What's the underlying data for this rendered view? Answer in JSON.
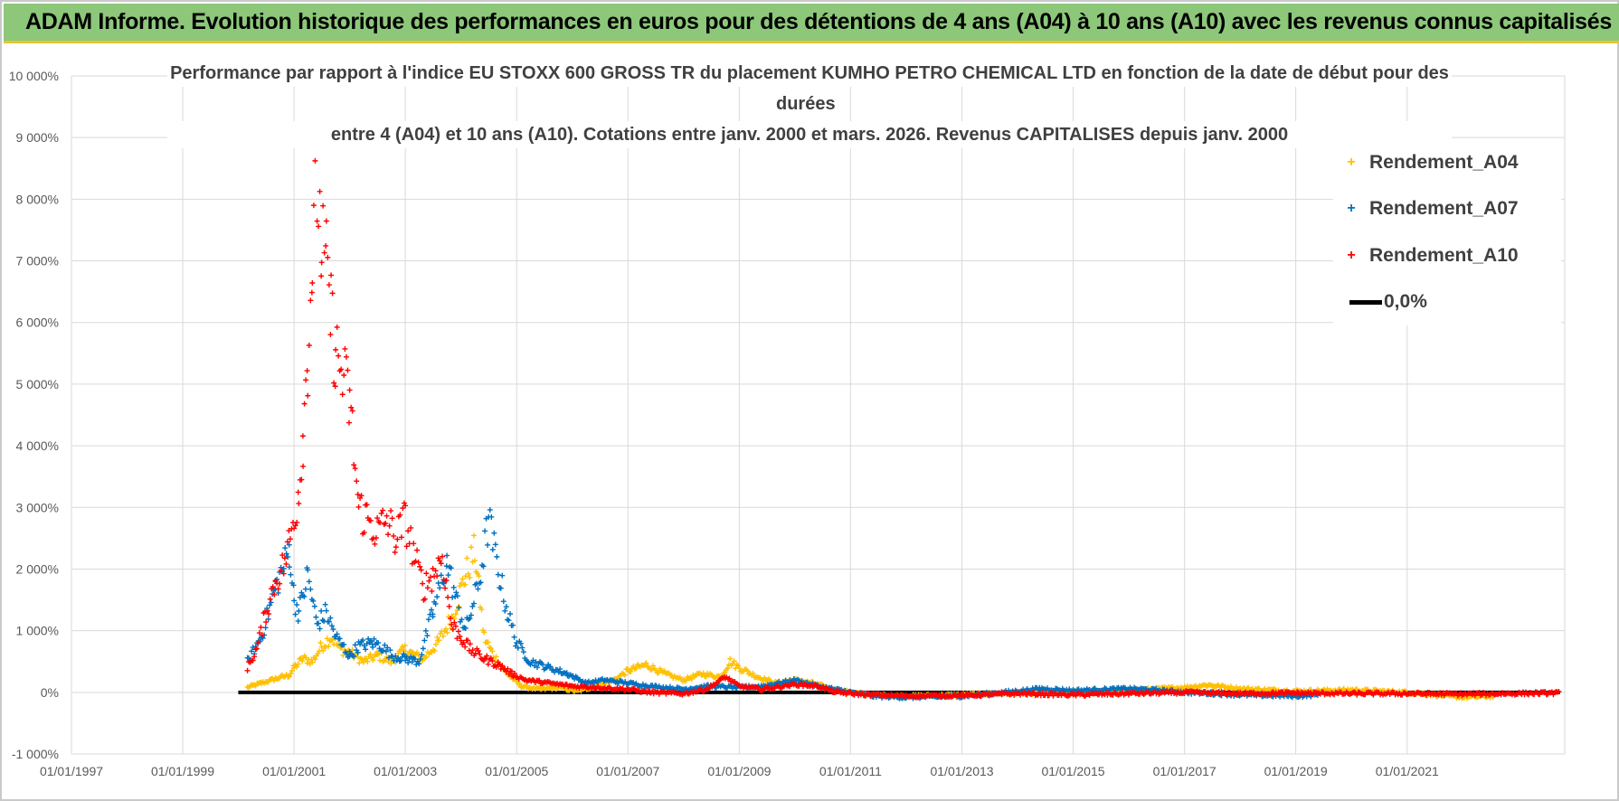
{
  "banner": {
    "title": "ADAM Informe. Evolution historique des performances en euros pour des détentions de 4 ans (A04) à 10 ans (A10) avec les revenus connus capitalisés"
  },
  "colors": {
    "banner_bg": "#8dc77a",
    "banner_border": "#e6c530",
    "A04": "#ffc000",
    "A07": "#0070c0",
    "A10": "#ff0000",
    "zero_line": "#000000",
    "grid": "#d9d9d9"
  },
  "chart_data": {
    "type": "scatter",
    "title_lines": [
      "Performance par rapport à l'indice EU STOXX 600 GROSS TR  du placement KUMHO PETRO CHEMICAL LTD en fonction de la date de début pour des",
      "durées",
      "entre 4 (A04) et 10 ans (A10).  Cotations entre janv. 2000 et mars. 2026.  Revenus CAPITALISES depuis janv. 2000"
    ],
    "xlabel": "",
    "ylabel": "",
    "x_ticks": [
      "01/01/1997",
      "01/01/1999",
      "01/01/2001",
      "01/01/2003",
      "01/01/2005",
      "01/01/2007",
      "01/01/2009",
      "01/01/2011",
      "01/01/2013",
      "01/01/2015",
      "01/01/2017",
      "01/01/2019",
      "01/01/2021"
    ],
    "x_range": [
      "1997-01-01",
      "2023-11-01"
    ],
    "y_ticks": [
      "-1 000%",
      "0%",
      "1 000%",
      "2 000%",
      "3 000%",
      "4 000%",
      "5 000%",
      "6 000%",
      "7 000%",
      "8 000%",
      "9 000%",
      "10 000%"
    ],
    "ylim": [
      -1000,
      10000
    ],
    "grid": true,
    "legend_position": "top-right",
    "series": [
      {
        "name": "Rendement_A04",
        "marker": "+",
        "points": [
          [
            "2000-03",
            80
          ],
          [
            "2000-06",
            150
          ],
          [
            "2000-09",
            220
          ],
          [
            "2000-12",
            280
          ],
          [
            "2001-01",
            400
          ],
          [
            "2001-03",
            550
          ],
          [
            "2001-05",
            500
          ],
          [
            "2001-07",
            750
          ],
          [
            "2001-09",
            900
          ],
          [
            "2001-11",
            700
          ],
          [
            "2002-01",
            650
          ],
          [
            "2002-04",
            500
          ],
          [
            "2002-07",
            600
          ],
          [
            "2002-10",
            500
          ],
          [
            "2003-01",
            700
          ],
          [
            "2003-03",
            600
          ],
          [
            "2003-05",
            550
          ],
          [
            "2003-08",
            800
          ],
          [
            "2003-11",
            1200
          ],
          [
            "2004-02",
            1900
          ],
          [
            "2004-04",
            2300
          ],
          [
            "2004-06",
            900
          ],
          [
            "2004-08",
            600
          ],
          [
            "2004-11",
            300
          ],
          [
            "2005-02",
            100
          ],
          [
            "2005-06",
            50
          ],
          [
            "2005-10",
            80
          ],
          [
            "2006-02",
            20
          ],
          [
            "2006-06",
            100
          ],
          [
            "2006-10",
            200
          ],
          [
            "2007-01",
            350
          ],
          [
            "2007-05",
            450
          ],
          [
            "2007-09",
            300
          ],
          [
            "2008-01",
            200
          ],
          [
            "2008-05",
            300
          ],
          [
            "2008-09",
            250
          ],
          [
            "2008-11",
            500
          ],
          [
            "2009-01",
            400
          ],
          [
            "2009-05",
            250
          ],
          [
            "2009-09",
            150
          ],
          [
            "2010-01",
            200
          ],
          [
            "2010-05",
            150
          ],
          [
            "2010-09",
            50
          ],
          [
            "2011-01",
            0
          ],
          [
            "2011-06",
            -50
          ],
          [
            "2012-01",
            -60
          ],
          [
            "2013-01",
            -40
          ],
          [
            "2014-01",
            -10
          ],
          [
            "2015-01",
            0
          ],
          [
            "2016-01",
            30
          ],
          [
            "2017-01",
            80
          ],
          [
            "2017-06",
            120
          ],
          [
            "2018-01",
            60
          ],
          [
            "2019-01",
            20
          ],
          [
            "2020-01",
            40
          ],
          [
            "2021-01",
            0
          ],
          [
            "2022-01",
            -80
          ],
          [
            "2022-08",
            -60
          ]
        ]
      },
      {
        "name": "Rendement_A07",
        "marker": "+",
        "points": [
          [
            "2000-03",
            500
          ],
          [
            "2000-06",
            900
          ],
          [
            "2000-09",
            1700
          ],
          [
            "2000-12",
            2300
          ],
          [
            "2001-01",
            1500
          ],
          [
            "2001-02",
            1300
          ],
          [
            "2001-04",
            1900
          ],
          [
            "2001-06",
            1100
          ],
          [
            "2001-08",
            1300
          ],
          [
            "2001-10",
            900
          ],
          [
            "2002-01",
            600
          ],
          [
            "2002-03",
            750
          ],
          [
            "2002-06",
            800
          ],
          [
            "2002-08",
            750
          ],
          [
            "2002-10",
            600
          ],
          [
            "2003-01",
            550
          ],
          [
            "2003-04",
            500
          ],
          [
            "2003-07",
            1300
          ],
          [
            "2003-10",
            2100
          ],
          [
            "2003-12",
            1500
          ],
          [
            "2004-02",
            1000
          ],
          [
            "2004-05",
            1800
          ],
          [
            "2004-07",
            2800
          ],
          [
            "2004-09",
            2000
          ],
          [
            "2004-11",
            1300
          ],
          [
            "2005-01",
            800
          ],
          [
            "2005-04",
            500
          ],
          [
            "2005-08",
            400
          ],
          [
            "2005-12",
            300
          ],
          [
            "2006-04",
            150
          ],
          [
            "2006-08",
            200
          ],
          [
            "2007-01",
            150
          ],
          [
            "2007-06",
            100
          ],
          [
            "2008-01",
            50
          ],
          [
            "2008-06",
            100
          ],
          [
            "2009-01",
            80
          ],
          [
            "2009-06",
            100
          ],
          [
            "2010-01",
            200
          ],
          [
            "2010-06",
            100
          ],
          [
            "2011-01",
            0
          ],
          [
            "2011-06",
            -60
          ],
          [
            "2012-01",
            -80
          ],
          [
            "2013-01",
            -60
          ],
          [
            "2014-01",
            20
          ],
          [
            "2014-06",
            60
          ],
          [
            "2015-01",
            30
          ],
          [
            "2016-01",
            60
          ],
          [
            "2016-06",
            40
          ],
          [
            "2017-01",
            0
          ],
          [
            "2018-01",
            -40
          ],
          [
            "2019-01",
            -60
          ],
          [
            "2019-06",
            -40
          ]
        ]
      },
      {
        "name": "Rendement_A10",
        "marker": "+",
        "points": [
          [
            "2000-03",
            400
          ],
          [
            "2000-05",
            700
          ],
          [
            "2000-07",
            1300
          ],
          [
            "2000-09",
            1800
          ],
          [
            "2000-11",
            2100
          ],
          [
            "2001-01",
            2800
          ],
          [
            "2001-02",
            3300
          ],
          [
            "2001-03",
            4200
          ],
          [
            "2001-04",
            5500
          ],
          [
            "2001-05",
            7000
          ],
          [
            "2001-06",
            8300
          ],
          [
            "2001-07",
            7200
          ],
          [
            "2001-08",
            6800
          ],
          [
            "2001-09",
            6100
          ],
          [
            "2001-10",
            5500
          ],
          [
            "2001-12",
            5000
          ],
          [
            "2002-01",
            4700
          ],
          [
            "2002-03",
            3000
          ],
          [
            "2002-05",
            2800
          ],
          [
            "2002-07",
            2600
          ],
          [
            "2002-09",
            2800
          ],
          [
            "2002-11",
            2500
          ],
          [
            "2003-01",
            2800
          ],
          [
            "2003-03",
            2200
          ],
          [
            "2003-05",
            1700
          ],
          [
            "2003-07",
            1900
          ],
          [
            "2003-09",
            2200
          ],
          [
            "2003-11",
            1100
          ],
          [
            "2004-01",
            900
          ],
          [
            "2004-03",
            700
          ],
          [
            "2004-06",
            550
          ],
          [
            "2004-09",
            450
          ],
          [
            "2004-12",
            300
          ],
          [
            "2005-03",
            200
          ],
          [
            "2005-08",
            150
          ],
          [
            "2006-01",
            100
          ],
          [
            "2006-06",
            80
          ],
          [
            "2007-01",
            50
          ],
          [
            "2007-06",
            0
          ],
          [
            "2008-01",
            -20
          ],
          [
            "2008-06",
            50
          ],
          [
            "2008-10",
            250
          ],
          [
            "2009-01",
            100
          ],
          [
            "2009-06",
            50
          ],
          [
            "2010-01",
            130
          ],
          [
            "2010-06",
            100
          ],
          [
            "2010-10",
            0
          ],
          [
            "2011-03",
            -30
          ],
          [
            "2012-01",
            -60
          ],
          [
            "2013-01",
            -50
          ],
          [
            "2014-01",
            -20
          ],
          [
            "2015-01",
            -40
          ],
          [
            "2016-01",
            -20
          ],
          [
            "2017-01",
            0
          ],
          [
            "2018-01",
            -20
          ],
          [
            "2019-01",
            -10
          ],
          [
            "2020-01",
            -20
          ],
          [
            "2021-01",
            -20
          ],
          [
            "2022-01",
            -30
          ],
          [
            "2023-10",
            -10
          ]
        ]
      },
      {
        "name": "0,0%",
        "line": true,
        "points": [
          [
            "2000-01",
            0
          ],
          [
            "2023-10",
            0
          ]
        ]
      }
    ]
  }
}
